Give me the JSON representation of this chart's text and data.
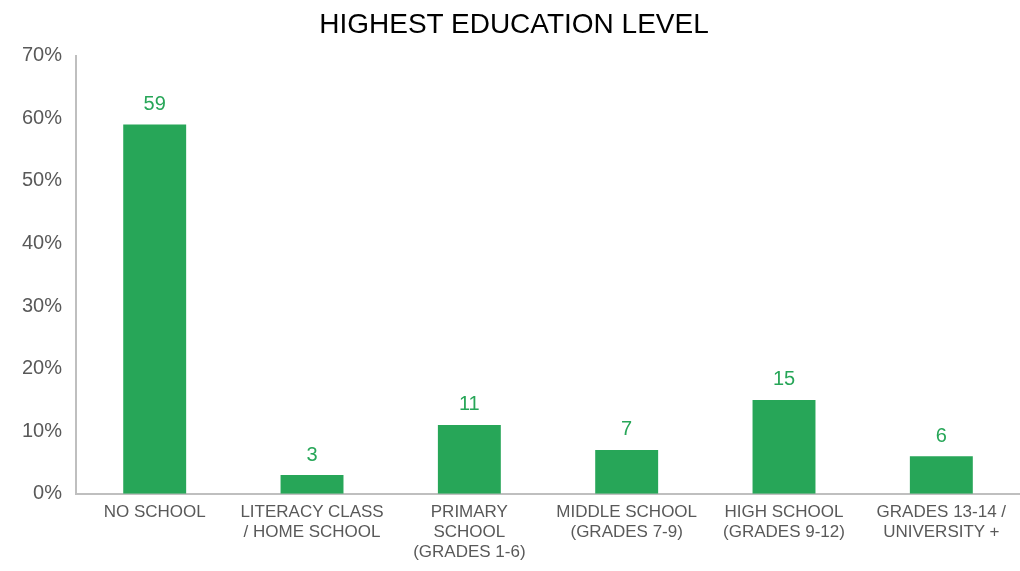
{
  "chart_data": {
    "type": "bar",
    "title": "HIGHEST EDUCATION LEVEL",
    "categories": [
      "NO SCHOOL",
      "LITERACY CLASS / HOME SCHOOL",
      "PRIMARY SCHOOL (GRADES 1-6)",
      "MIDDLE SCHOOL (GRADES 7-9)",
      "HIGH SCHOOL (GRADES 9-12)",
      "GRADES 13-14 / UNIVERSITY +"
    ],
    "values": [
      59,
      3,
      11,
      7,
      15,
      6
    ],
    "color": "#27a658",
    "ylim": [
      0,
      70
    ],
    "yticks": [
      {
        "value": 0,
        "label": "0%"
      },
      {
        "value": 10,
        "label": "10%"
      },
      {
        "value": 20,
        "label": "20%"
      },
      {
        "value": 30,
        "label": "30%"
      },
      {
        "value": 40,
        "label": "40%"
      },
      {
        "value": 50,
        "label": "50%"
      },
      {
        "value": 60,
        "label": "60%"
      },
      {
        "value": 70,
        "label": "70%"
      }
    ],
    "grid": false,
    "legend": false,
    "data_labels": true
  }
}
